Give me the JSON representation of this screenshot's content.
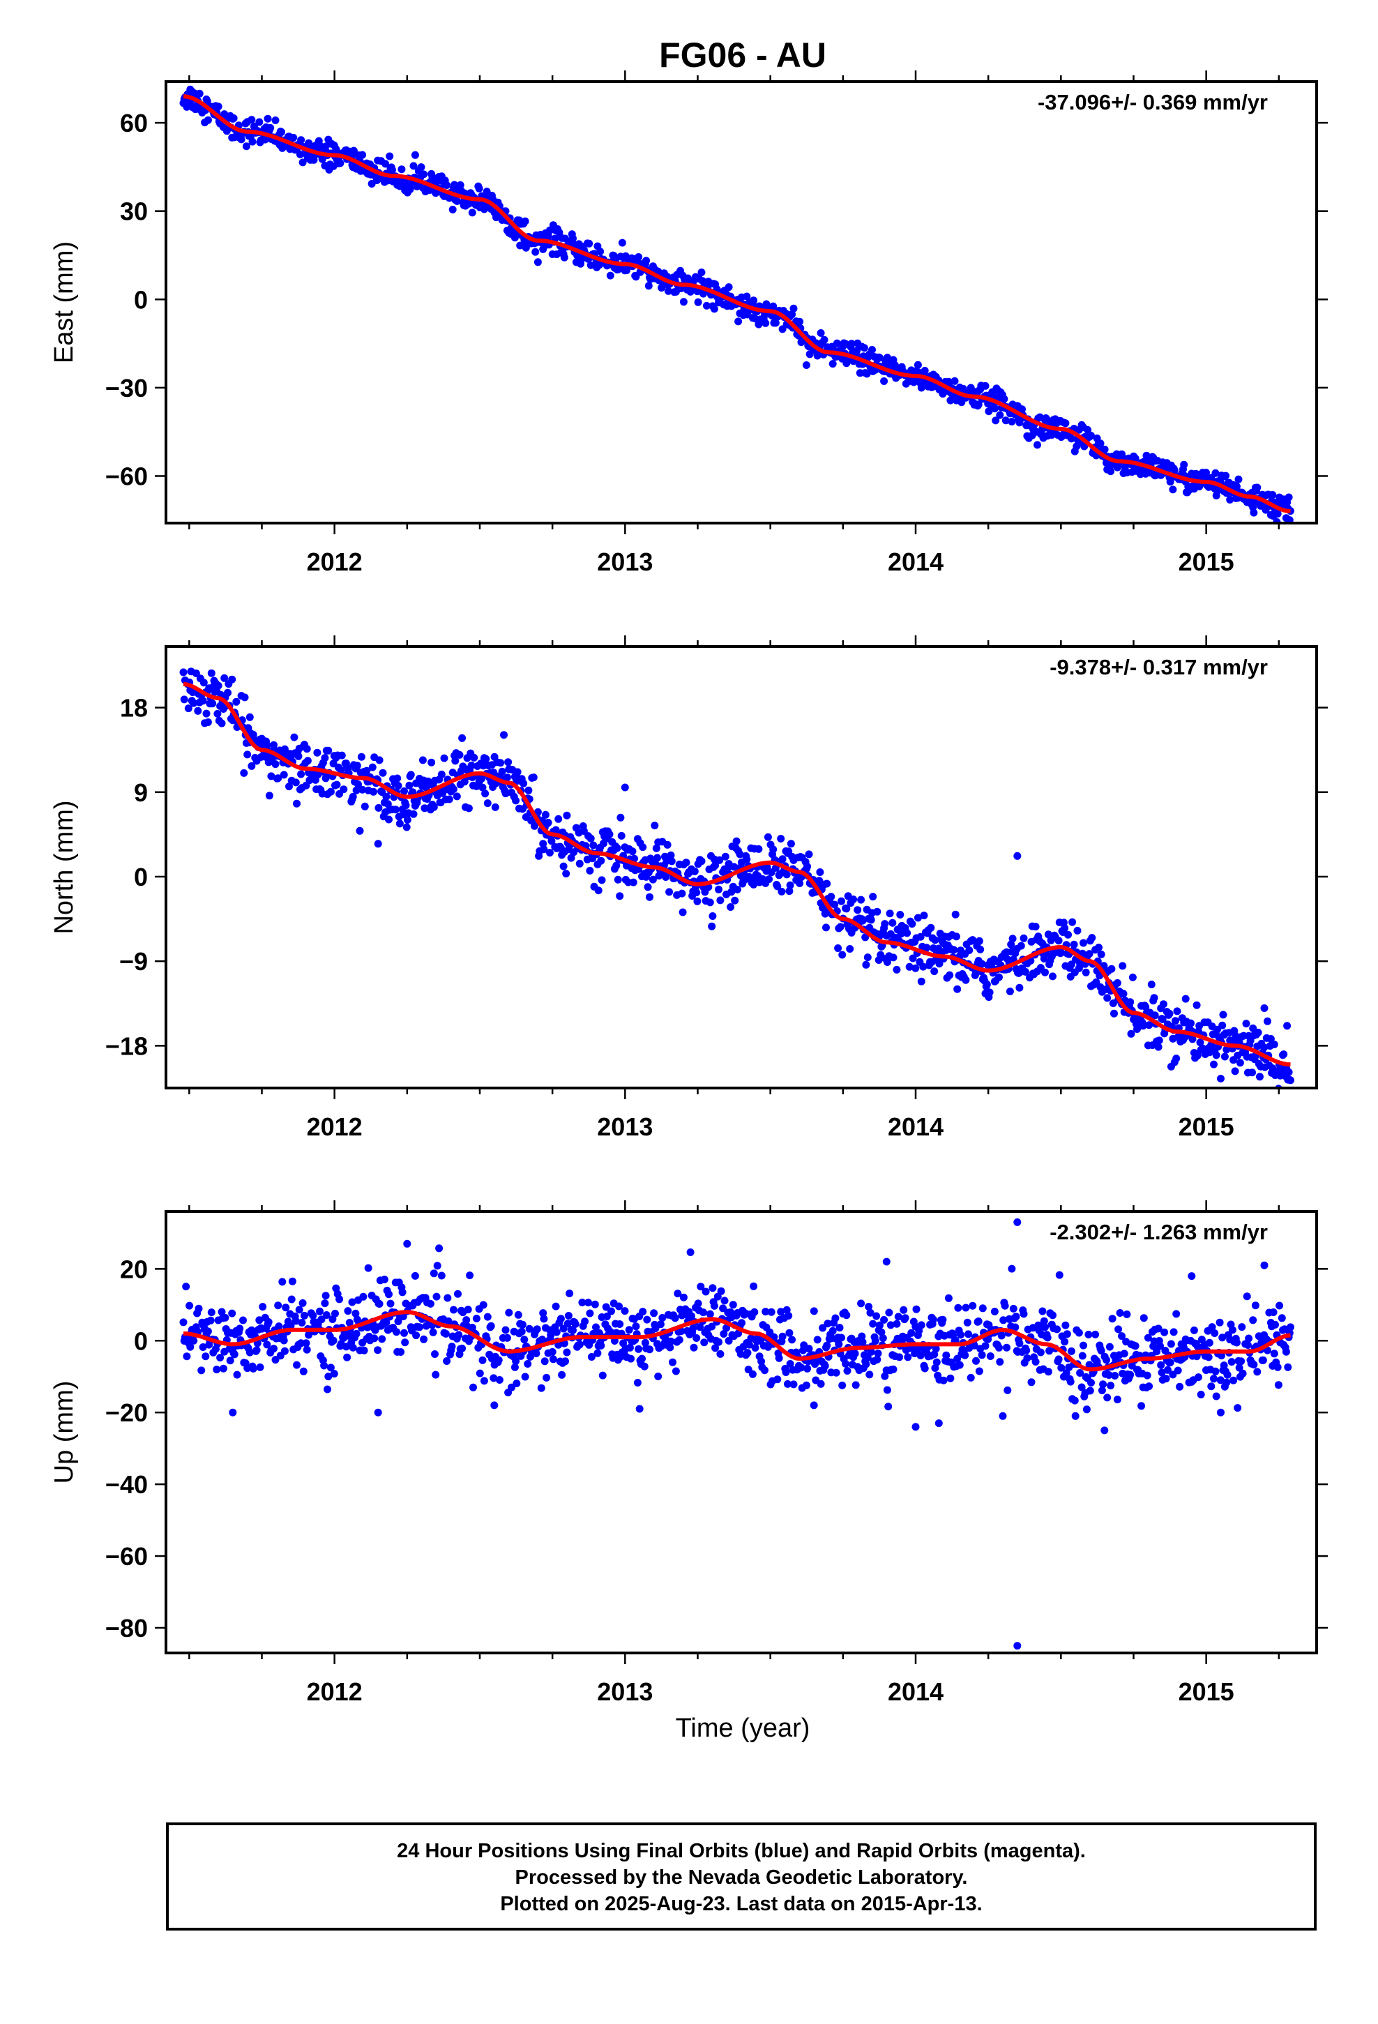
{
  "figure": {
    "title": "FG06 - AU",
    "xlabel": "Time (year)"
  },
  "chart_data": [
    {
      "type": "scatter",
      "title": "",
      "ylabel": "East (mm)",
      "rate_label": "-37.096+/- 0.369 mm/yr",
      "xlim": [
        2011.42,
        2015.38
      ],
      "ylim": [
        -76,
        74
      ],
      "xticks": [
        2012,
        2013,
        2014,
        2015
      ],
      "yticks": [
        60,
        30,
        0,
        -30,
        -60
      ],
      "trend": {
        "x": [
          2011.48,
          2011.7,
          2012.0,
          2012.2,
          2012.5,
          2012.7,
          2013.0,
          2013.2,
          2013.5,
          2013.7,
          2014.0,
          2014.2,
          2014.5,
          2014.7,
          2015.0,
          2015.15,
          2015.29
        ],
        "y": [
          69,
          57,
          49,
          42,
          34,
          20,
          12,
          5,
          -4,
          -18,
          -26,
          -33,
          -44,
          -55,
          -62,
          -67,
          -72
        ]
      },
      "scatter_noise": 2.2,
      "outliers": [],
      "series": [
        {
          "name": "",
          "color": "#0000ff",
          "kind": "points"
        },
        {
          "name": "",
          "color": "#ff0000",
          "kind": "line"
        }
      ]
    },
    {
      "type": "scatter",
      "title": "",
      "ylabel": "North (mm)",
      "rate_label": "-9.378+/- 0.317 mm/yr",
      "xlim": [
        2011.42,
        2015.38
      ],
      "ylim": [
        -22.5,
        24.5
      ],
      "xticks": [
        2012,
        2013,
        2014,
        2015
      ],
      "yticks": [
        18,
        9,
        0,
        -9,
        -18
      ],
      "trend": {
        "x": [
          2011.48,
          2011.6,
          2011.75,
          2011.9,
          2012.1,
          2012.25,
          2012.5,
          2012.6,
          2012.75,
          2012.9,
          2013.1,
          2013.25,
          2013.5,
          2013.6,
          2013.75,
          2013.9,
          2014.1,
          2014.25,
          2014.5,
          2014.6,
          2014.75,
          2014.9,
          2015.1,
          2015.29
        ],
        "y": [
          20.5,
          19,
          13.5,
          11.5,
          10.5,
          8.5,
          11,
          10,
          4.5,
          2.5,
          1,
          -0.8,
          1.5,
          0.5,
          -4.5,
          -7,
          -8.5,
          -10,
          -7.5,
          -9,
          -14.5,
          -16.5,
          -18,
          -20
        ]
      },
      "scatter_noise": 1.5,
      "outliers": [
        [
          2012.15,
          3.5
        ],
        [
          2013.0,
          9.5
        ],
        [
          2014.35,
          2.2
        ],
        [
          2015.05,
          -21.5
        ],
        [
          2015.2,
          -14
        ]
      ],
      "series": [
        {
          "name": "",
          "color": "#0000ff",
          "kind": "points"
        },
        {
          "name": "",
          "color": "#ff0000",
          "kind": "line"
        }
      ]
    },
    {
      "type": "scatter",
      "title": "",
      "ylabel": "Up (mm)",
      "rate_label": "-2.302+/- 1.263 mm/yr",
      "xlim": [
        2011.42,
        2015.38
      ],
      "ylim": [
        -87,
        36
      ],
      "xticks": [
        2012,
        2013,
        2014,
        2015
      ],
      "yticks": [
        20,
        0,
        -20,
        -40,
        -60,
        -80
      ],
      "trend": {
        "x": [
          2011.48,
          2011.65,
          2011.85,
          2012.0,
          2012.25,
          2012.4,
          2012.6,
          2012.85,
          2013.05,
          2013.3,
          2013.45,
          2013.6,
          2013.8,
          2014.0,
          2014.15,
          2014.3,
          2014.45,
          2014.6,
          2014.8,
          2015.0,
          2015.15,
          2015.29
        ],
        "y": [
          2,
          -1,
          3,
          3,
          8,
          4,
          -3,
          1,
          1,
          6,
          2,
          -5,
          -2,
          -1,
          -1,
          3,
          -1,
          -8,
          -5,
          -3,
          -3,
          1.5
        ]
      },
      "scatter_noise": 5.5,
      "outliers": [
        [
          2011.65,
          -20
        ],
        [
          2012.15,
          -20
        ],
        [
          2012.25,
          27
        ],
        [
          2012.55,
          -18
        ],
        [
          2013.05,
          -19
        ],
        [
          2013.65,
          -18
        ],
        [
          2013.9,
          22
        ],
        [
          2014.0,
          -24
        ],
        [
          2014.08,
          -23
        ],
        [
          2014.3,
          -21
        ],
        [
          2014.35,
          33
        ],
        [
          2014.35,
          -85
        ],
        [
          2014.55,
          -21
        ],
        [
          2014.65,
          -25
        ],
        [
          2014.95,
          18
        ],
        [
          2015.05,
          -20
        ],
        [
          2015.2,
          21
        ]
      ],
      "series": [
        {
          "name": "",
          "color": "#0000ff",
          "kind": "points"
        },
        {
          "name": "",
          "color": "#ff0000",
          "kind": "line"
        }
      ]
    }
  ],
  "footer": {
    "line1": "24 Hour Positions Using Final Orbits (blue) and Rapid Orbits (magenta).",
    "line2": "Processed by the Nevada Geodetic Laboratory.",
    "line3": "Plotted on 2025-Aug-23. Last data on 2015-Apr-13."
  }
}
